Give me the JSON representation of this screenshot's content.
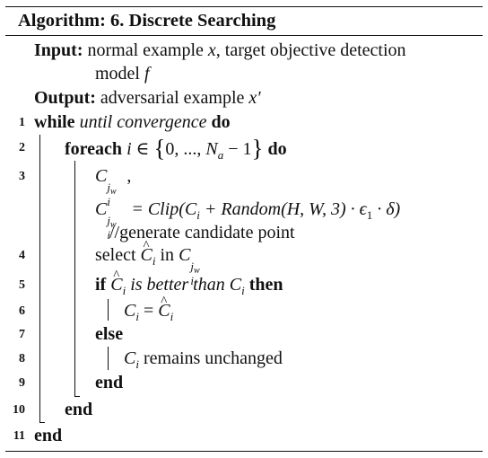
{
  "algorithm": {
    "caption": "Algorithm: 6. Discrete Searching",
    "input_keyword": "Input:",
    "input_text_1": "normal example",
    "input_var_x": "x",
    "input_text_2": ", target objective detection",
    "input_text_3": "model",
    "input_var_f": "f",
    "output_keyword": "Output:",
    "output_text": "adversarial example",
    "output_var": "x′",
    "lines": [
      {
        "n": "1"
      },
      {
        "n": "2"
      },
      {
        "n": "3"
      },
      {
        "n": "4"
      },
      {
        "n": "5"
      },
      {
        "n": "6"
      },
      {
        "n": "7"
      },
      {
        "n": "8"
      },
      {
        "n": "9"
      },
      {
        "n": "10"
      },
      {
        "n": "11"
      }
    ],
    "kw_while": "while",
    "until_conv": "until convergence",
    "kw_do": "do",
    "kw_foreach": "foreach",
    "foreach_var": "i",
    "foreach_in": "∈",
    "set_start": "0, ...,",
    "set_N": "N",
    "set_a": "a",
    "set_end": "− 1",
    "brace_open": "{",
    "brace_close": "}",
    "C": "C",
    "sub_i": "i",
    "sup_jw": "j",
    "sup_w": "w",
    "comma": ",",
    "eq_rhs": "= Clip(C",
    "eq_plus": " + Random(H, W, 3) · ϵ",
    "eq_1": "1",
    "eq_end": " · δ)",
    "comment": "//generate candidate point",
    "select_word": "select",
    "in_word": "in",
    "kw_if": "if",
    "better_than": "is better than",
    "kw_then": "then",
    "eq_sign": "=",
    "kw_else": "else",
    "remains": "remains unchanged",
    "kw_end": "end"
  }
}
